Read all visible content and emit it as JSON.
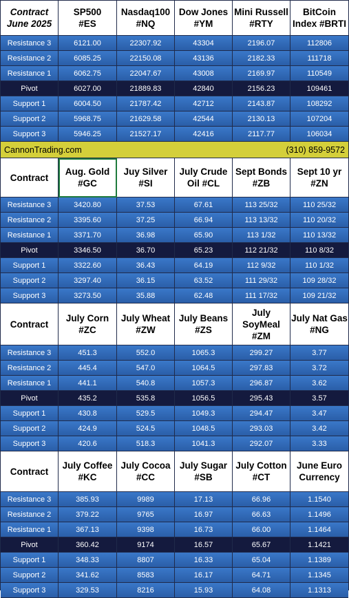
{
  "sections": [
    {
      "header": [
        "Contract\nJune 2025",
        "SP500\n#ES",
        "Nasdaq100\n#NQ",
        "Dow Jones\n#YM",
        "Mini Russell\n#RTY",
        "BitCoin\nIndex #BRTI"
      ],
      "rows": [
        [
          "Resistance 3",
          "6121.00",
          "22307.92",
          "43304",
          "2196.07",
          "112806"
        ],
        [
          "Resistance 2",
          "6085.25",
          "22150.08",
          "43136",
          "2182.33",
          "111718"
        ],
        [
          "Resistance 1",
          "6062.75",
          "22047.67",
          "43008",
          "2169.97",
          "110549"
        ],
        [
          "Pivot",
          "6027.00",
          "21889.83",
          "42840",
          "2156.23",
          "109461"
        ],
        [
          "Support 1",
          "6004.50",
          "21787.42",
          "42712",
          "2143.87",
          "108292"
        ],
        [
          "Support 2",
          "5968.75",
          "21629.58",
          "42544",
          "2130.13",
          "107204"
        ],
        [
          "Support 3",
          "5946.25",
          "21527.17",
          "42416",
          "2117.77",
          "106034"
        ]
      ]
    },
    {
      "header": [
        "Contract",
        "Aug. Gold\n#GC",
        "Juy Silver\n#SI",
        "July Crude\nOil #CL",
        "Sept Bonds\n#ZB",
        "Sept 10 yr\n#ZN"
      ],
      "rows": [
        [
          "Resistance 3",
          "3420.80",
          "37.53",
          "67.61",
          "113 25/32",
          "110 25/32"
        ],
        [
          "Resistance 2",
          "3395.60",
          "37.25",
          "66.94",
          "113 13/32",
          "110 20/32"
        ],
        [
          "Resistance 1",
          "3371.70",
          "36.98",
          "65.90",
          "113  1/32",
          "110 13/32"
        ],
        [
          "Pivot",
          "3346.50",
          "36.70",
          "65.23",
          "112 21/32",
          "110  8/32"
        ],
        [
          "Support 1",
          "3322.60",
          "36.43",
          "64.19",
          "112  9/32",
          "110  1/32"
        ],
        [
          "Support 2",
          "3297.40",
          "36.15",
          "63.52",
          "111 29/32",
          "109 28/32"
        ],
        [
          "Support 3",
          "3273.50",
          "35.88",
          "62.48",
          "111 17/32",
          "109 21/32"
        ]
      ]
    },
    {
      "header": [
        "Contract",
        "July Corn\n#ZC",
        "July  Wheat\n#ZW",
        "July Beans\n#ZS",
        "July\nSoyMeal\n#ZM",
        "July Nat Gas\n#NG"
      ],
      "rows": [
        [
          "Resistance 3",
          "451.3",
          "552.0",
          "1065.3",
          "299.27",
          "3.77"
        ],
        [
          "Resistance 2",
          "445.4",
          "547.0",
          "1064.5",
          "297.83",
          "3.72"
        ],
        [
          "Resistance 1",
          "441.1",
          "540.8",
          "1057.3",
          "296.87",
          "3.62"
        ],
        [
          "Pivot",
          "435.2",
          "535.8",
          "1056.5",
          "295.43",
          "3.57"
        ],
        [
          "Support 1",
          "430.8",
          "529.5",
          "1049.3",
          "294.47",
          "3.47"
        ],
        [
          "Support 2",
          "424.9",
          "524.5",
          "1048.5",
          "293.03",
          "3.42"
        ],
        [
          "Support 3",
          "420.6",
          "518.3",
          "1041.3",
          "292.07",
          "3.33"
        ]
      ]
    },
    {
      "header": [
        "Contract",
        "July Coffee\n#KC",
        "July Cocoa\n#CC",
        "July Sugar\n#SB",
        "July Cotton\n#CT",
        "June Euro\nCurrency"
      ],
      "rows": [
        [
          "Resistance 3",
          "385.93",
          "9989",
          "17.13",
          "66.96",
          "1.1540"
        ],
        [
          "Resistance 2",
          "379.22",
          "9765",
          "16.97",
          "66.63",
          "1.1496"
        ],
        [
          "Resistance 1",
          "367.13",
          "9398",
          "16.73",
          "66.00",
          "1.1464"
        ],
        [
          "Pivot",
          "360.42",
          "9174",
          "16.57",
          "65.67",
          "1.1421"
        ],
        [
          "Support 1",
          "348.33",
          "8807",
          "16.33",
          "65.04",
          "1.1389"
        ],
        [
          "Support 2",
          "341.62",
          "8583",
          "16.17",
          "64.71",
          "1.1345"
        ],
        [
          "Support 3",
          "329.53",
          "8216",
          "15.93",
          "64.08",
          "1.1313"
        ]
      ]
    }
  ],
  "band": {
    "website": "CannonTrading.com",
    "phone": "(310) 859-9572"
  },
  "colors": {
    "level_row": "#3a78c9",
    "pivot_row": "#141a3e",
    "band": "#d4cf3a",
    "selected_cell_border": "#1e7a3c"
  }
}
